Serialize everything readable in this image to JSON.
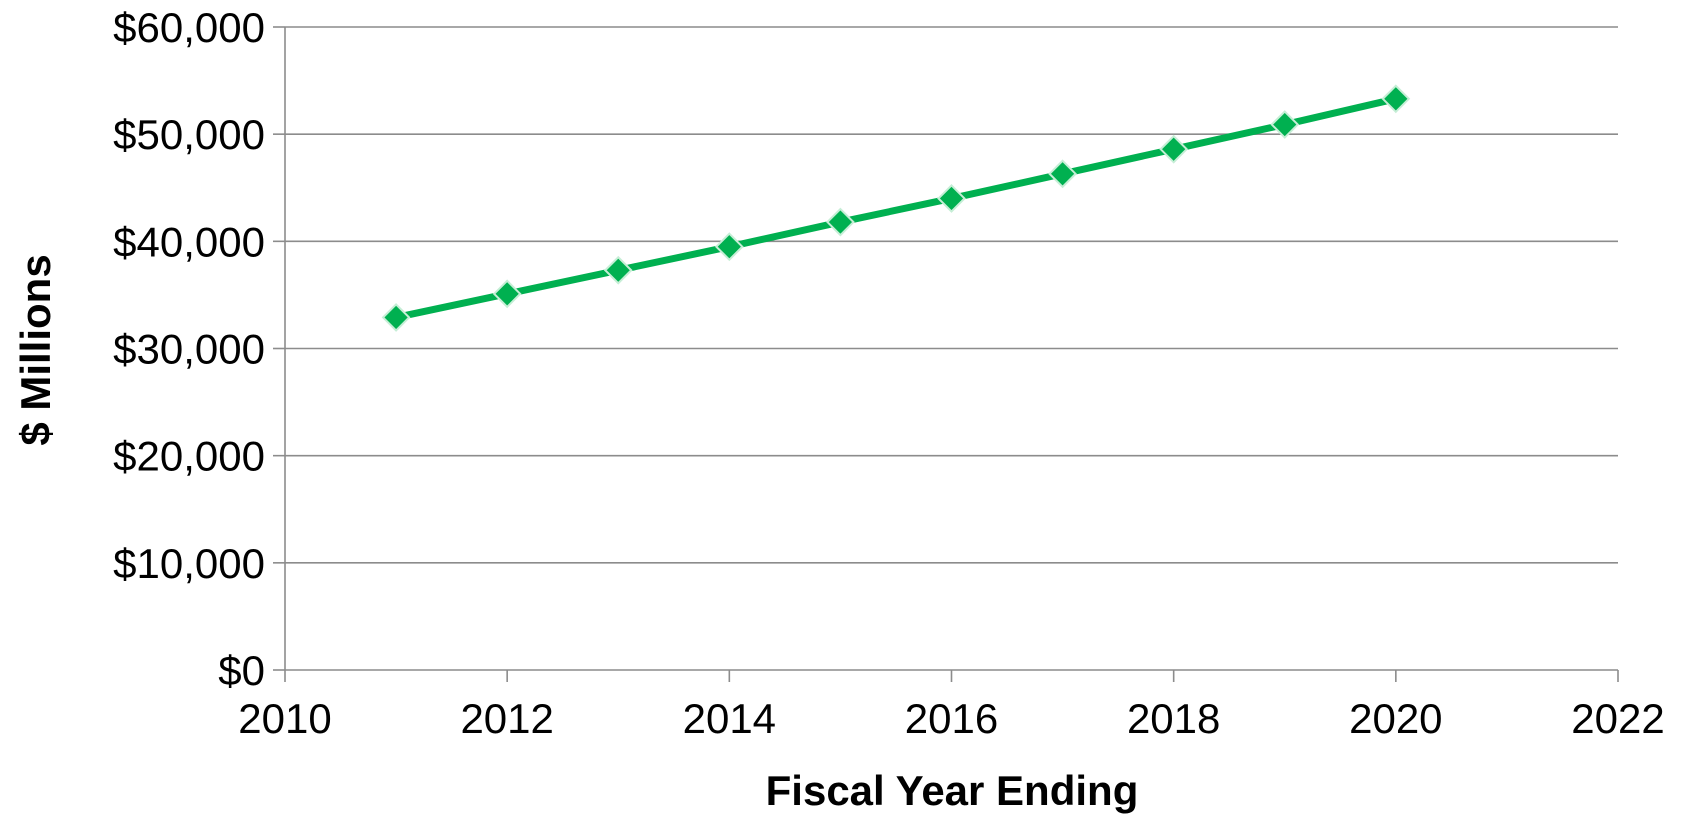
{
  "chart_data": {
    "type": "line",
    "title": "",
    "xlabel": "Fiscal Year Ending",
    "ylabel": "$ Millions",
    "xlim": [
      2010,
      2022
    ],
    "ylim": [
      0,
      60000
    ],
    "x_ticks": [
      2010,
      2012,
      2014,
      2016,
      2018,
      2020,
      2022
    ],
    "y_ticks": [
      0,
      10000,
      20000,
      30000,
      40000,
      50000,
      60000
    ],
    "y_tick_labels": [
      "$0",
      "$10,000",
      "$20,000",
      "$30,000",
      "$40,000",
      "$50,000",
      "$60,000"
    ],
    "grid": "horizontal",
    "legend": "none",
    "series": [
      {
        "color": "#00B050",
        "marker": "diamond",
        "x": [
          2011,
          2012,
          2013,
          2014,
          2015,
          2016,
          2017,
          2018,
          2019,
          2020
        ],
        "values": [
          32900,
          35100,
          37300,
          39500,
          41800,
          44000,
          46300,
          48600,
          50900,
          53300
        ]
      }
    ]
  }
}
